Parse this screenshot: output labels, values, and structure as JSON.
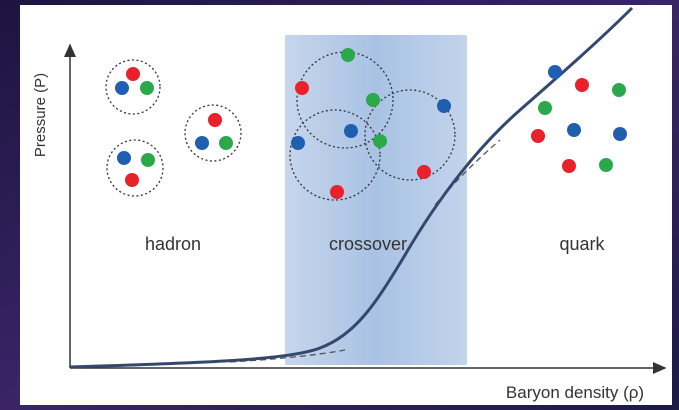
{
  "axes": {
    "y_label": "Pressure (P)",
    "x_label": "Baryon density (ρ)"
  },
  "regions": [
    {
      "label": "hadron"
    },
    {
      "label": "crossover"
    },
    {
      "label": "quark"
    }
  ]
}
